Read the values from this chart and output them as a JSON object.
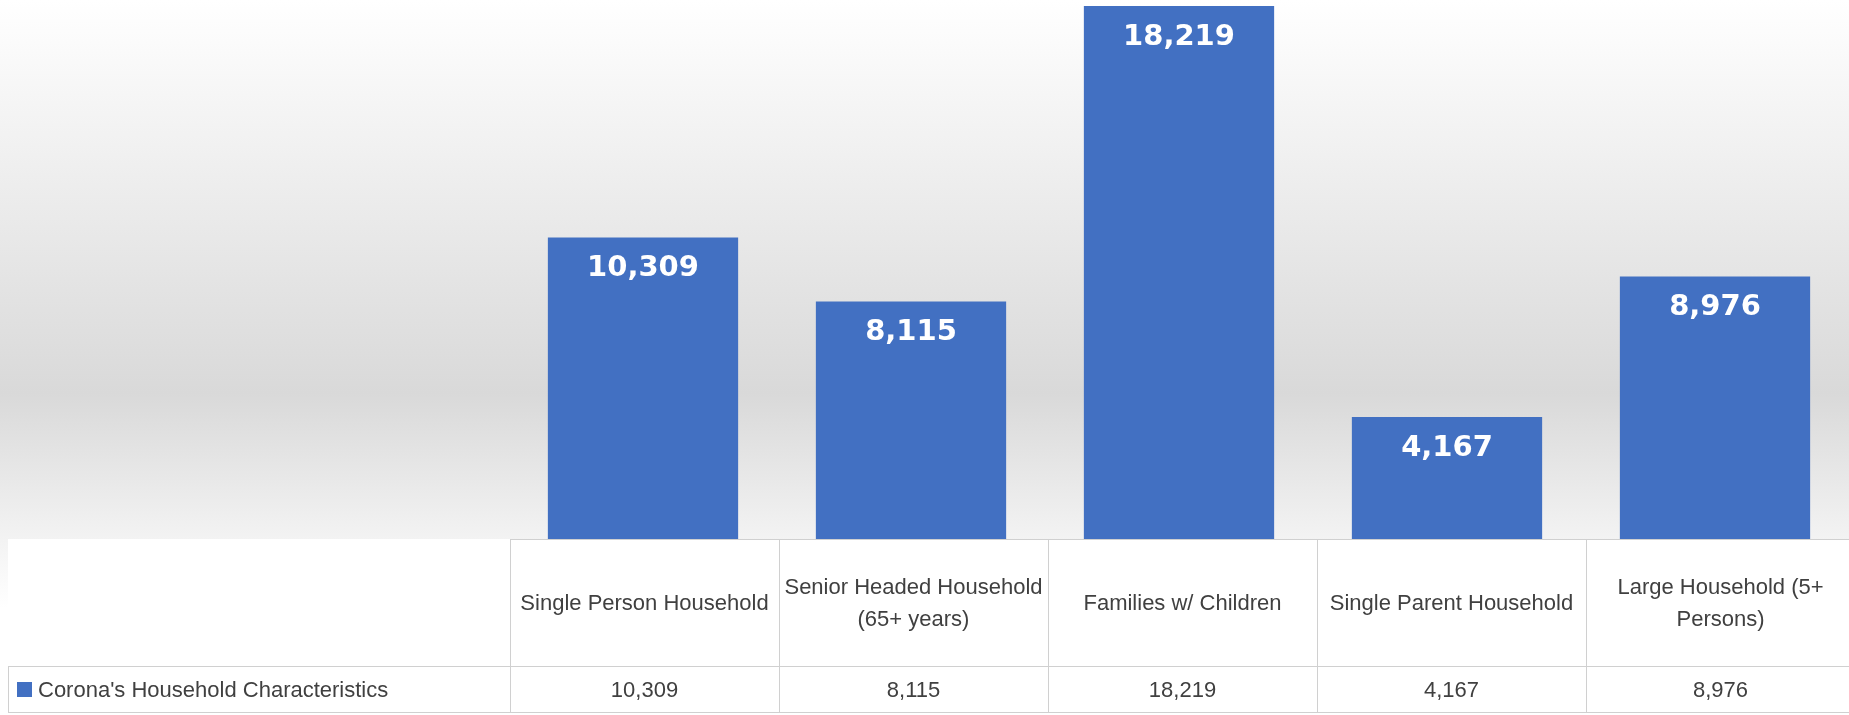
{
  "chart_data": {
    "type": "bar",
    "categories": [
      "Single Person Household",
      "Senior Headed Household (65+ years)",
      "Families w/ Children",
      "Single Parent Household",
      "Large Household (5+ Persons)"
    ],
    "series": [
      {
        "name": "Corona's Household Characteristics",
        "color": "#4270c2",
        "values": [
          10309,
          8115,
          18219,
          4167,
          8976
        ],
        "value_labels": [
          "10,309",
          "8,115",
          "18,219",
          "4,167",
          "8,976"
        ]
      }
    ],
    "legend": "bottom"
  }
}
